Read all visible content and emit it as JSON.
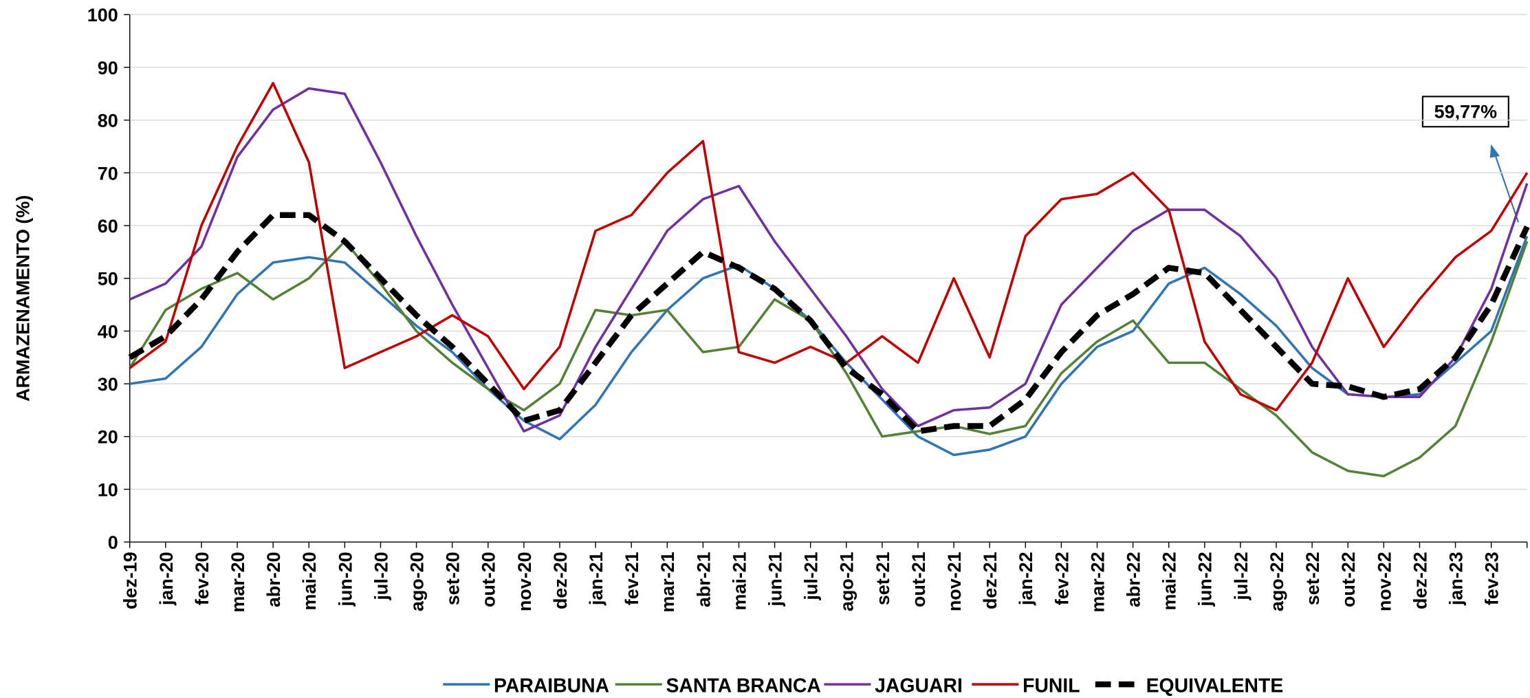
{
  "chart_data": {
    "type": "line",
    "y_label": "ARMAZENAMENTO (%)",
    "annotation": "59,77%",
    "categories": [
      "dez-19",
      "jan-20",
      "fev-20",
      "mar-20",
      "abr-20",
      "mai-20",
      "jun-20",
      "jul-20",
      "ago-20",
      "set-20",
      "out-20",
      "nov-20",
      "dez-20",
      "jan-21",
      "fev-21",
      "mar-21",
      "abr-21",
      "mai-21",
      "jun-21",
      "jul-21",
      "ago-21",
      "set-21",
      "out-21",
      "nov-21",
      "dez-21",
      "jan-22",
      "fev-22",
      "mar-22",
      "abr-22",
      "mai-22",
      "jun-22",
      "jul-22",
      "ago-22",
      "set-22",
      "out-22",
      "nov-22",
      "dez-22",
      "jan-23",
      "fev-23",
      null
    ],
    "ylim": [
      0,
      100
    ],
    "yticks": [
      0,
      10,
      20,
      30,
      40,
      50,
      60,
      70,
      80,
      90,
      100
    ],
    "grid": true,
    "series": [
      {
        "name": "PARAIBUNA",
        "color": "#2e75b6",
        "values": [
          30,
          31,
          37,
          47,
          53,
          54,
          53,
          47,
          41,
          36,
          29,
          23,
          19.5,
          26,
          36,
          44,
          50,
          52.5,
          48,
          42,
          34,
          27,
          20,
          16.5,
          17.5,
          20,
          30,
          37,
          40,
          49,
          52,
          47,
          41,
          33,
          28,
          27.5,
          28,
          34,
          40,
          58
        ]
      },
      {
        "name": "SANTA BRANCA",
        "color": "#548235",
        "values": [
          33,
          44,
          48,
          51,
          46,
          50,
          57,
          49,
          40,
          34,
          29,
          25,
          30,
          44,
          43,
          44,
          36,
          37,
          46,
          42,
          32,
          20,
          21,
          22,
          20.5,
          22,
          32,
          38,
          42,
          34,
          34,
          29,
          24,
          17,
          13.5,
          12.5,
          16,
          22,
          38,
          57
        ]
      },
      {
        "name": "JAGUARI",
        "color": "#7030a0",
        "values": [
          46,
          49,
          56,
          73,
          82,
          86,
          85,
          72,
          58,
          45,
          33,
          21,
          24,
          37,
          48,
          59,
          65,
          67.5,
          57,
          48,
          39,
          29,
          22,
          25,
          25.5,
          30,
          45,
          52,
          59,
          63,
          63,
          58,
          50,
          37,
          28,
          27.5,
          27.5,
          35,
          48,
          68
        ]
      },
      {
        "name": "FUNIL",
        "color": "#c00000",
        "values": [
          33,
          38,
          60,
          75,
          87,
          72,
          33,
          36,
          39,
          43,
          39,
          29,
          37,
          59,
          62,
          70,
          76,
          36,
          34,
          37,
          34,
          39,
          34,
          50,
          35,
          58,
          65,
          66,
          70,
          63,
          38,
          28,
          25,
          34,
          50,
          37,
          46,
          54,
          59,
          70
        ]
      },
      {
        "name": "EQUIVALENTE",
        "color": "#000000",
        "dashed": true,
        "values": [
          35,
          39,
          46,
          55,
          62,
          62,
          57,
          50,
          43,
          37,
          30,
          23,
          25,
          34,
          43,
          49,
          55,
          52,
          48,
          42,
          33,
          28,
          21,
          22,
          22,
          27,
          36,
          43,
          47,
          52,
          51,
          44,
          37,
          30,
          29.5,
          27.5,
          29,
          35,
          45,
          59.77
        ]
      }
    ]
  }
}
